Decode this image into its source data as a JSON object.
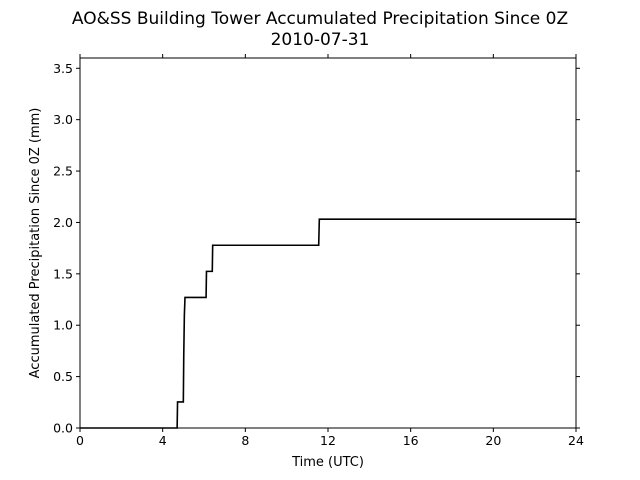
{
  "chart_data": {
    "type": "line",
    "title": "AO&SS Building Tower Accumulated Precipitation Since 0Z",
    "subtitle": "2010-07-31",
    "xlabel": "Time (UTC)",
    "ylabel": "Accumulated Precipitation Since 0Z (mm)",
    "xlim": [
      0,
      24
    ],
    "ylim": [
      0,
      3.6
    ],
    "xticks": [
      0,
      4,
      8,
      12,
      16,
      20,
      24
    ],
    "xtick_labels": [
      "0",
      "4",
      "8",
      "12",
      "16",
      "20",
      "24"
    ],
    "yticks": [
      0,
      0.5,
      1.0,
      1.5,
      2.0,
      2.5,
      3.0,
      3.5
    ],
    "ytick_labels": [
      "0.0",
      "0.5",
      "1.0",
      "1.5",
      "2.0",
      "2.5",
      "3.0",
      "3.5"
    ],
    "grid": false,
    "line_color": "#000000",
    "series": [
      {
        "x": [
          0,
          4.7,
          4.72,
          5.0,
          5.02,
          5.05,
          5.08,
          6.1,
          6.12,
          6.4,
          6.42,
          11.55,
          11.58,
          24
        ],
        "y": [
          0,
          0,
          0.254,
          0.254,
          0.7,
          1.1,
          1.27,
          1.27,
          1.524,
          1.524,
          1.778,
          1.778,
          2.032,
          2.032
        ]
      }
    ]
  }
}
